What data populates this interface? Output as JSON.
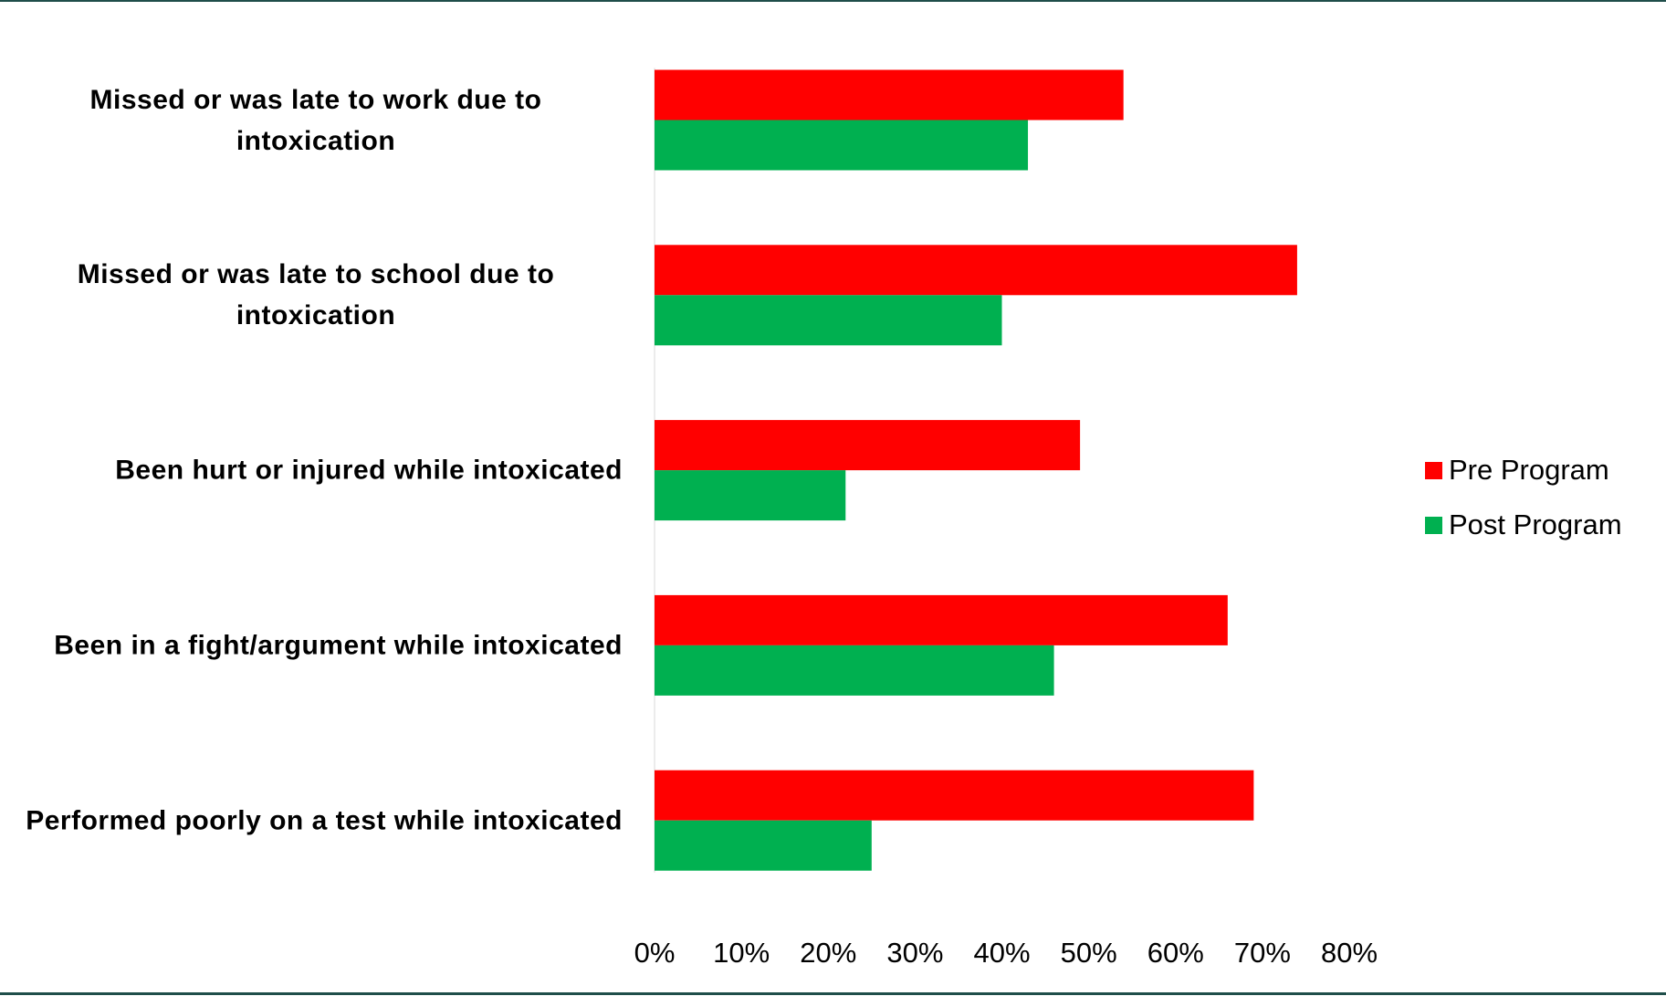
{
  "chart_data": {
    "type": "bar",
    "orientation": "horizontal",
    "categories": [
      "Missed or was late to work due to intoxication",
      "Missed or was late to school due to intoxication",
      "Been hurt or injured while intoxicated",
      "Been in a fight/argument while intoxicated",
      "Performed poorly on a test while intoxicated"
    ],
    "series": [
      {
        "name": "Pre Program",
        "color": "#ff0000",
        "values": [
          54,
          74,
          49,
          66,
          69
        ]
      },
      {
        "name": "Post Program",
        "color": "#00b050",
        "values": [
          43,
          40,
          22,
          46,
          25
        ]
      }
    ],
    "xlim": [
      0,
      80
    ],
    "xticks": [
      {
        "value": 0,
        "label": "0%"
      },
      {
        "value": 10,
        "label": "10%"
      },
      {
        "value": 20,
        "label": "20%"
      },
      {
        "value": 30,
        "label": "30%"
      },
      {
        "value": 40,
        "label": "40%"
      },
      {
        "value": 50,
        "label": "50%"
      },
      {
        "value": 60,
        "label": "60%"
      },
      {
        "value": 70,
        "label": "70%"
      },
      {
        "value": 80,
        "label": "80%"
      }
    ],
    "grid": false,
    "legend": "right"
  }
}
